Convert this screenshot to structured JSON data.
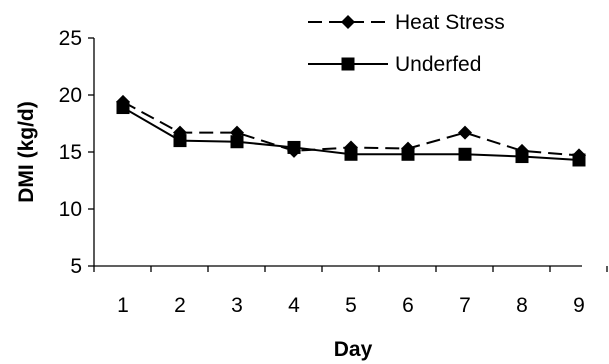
{
  "chart_data": {
    "type": "line",
    "title": "",
    "xlabel": "Day",
    "ylabel": "DMI (kg/d)",
    "categories": [
      "1",
      "2",
      "3",
      "4",
      "5",
      "6",
      "7",
      "8",
      "9"
    ],
    "ylim": [
      5,
      25
    ],
    "yticks": [
      5,
      10,
      15,
      20,
      25
    ],
    "grid": false,
    "legend_position": "top-right",
    "series": [
      {
        "name": "Heat Stress",
        "marker": "diamond",
        "line_style": "dashed",
        "color": "#000000",
        "values": [
          19.4,
          16.7,
          16.7,
          15.1,
          15.4,
          15.3,
          16.7,
          15.1,
          14.7
        ]
      },
      {
        "name": "Underfed",
        "marker": "square",
        "line_style": "solid",
        "color": "#000000",
        "values": [
          18.9,
          16.0,
          15.9,
          15.4,
          14.8,
          14.8,
          14.8,
          14.6,
          14.3
        ]
      }
    ]
  }
}
